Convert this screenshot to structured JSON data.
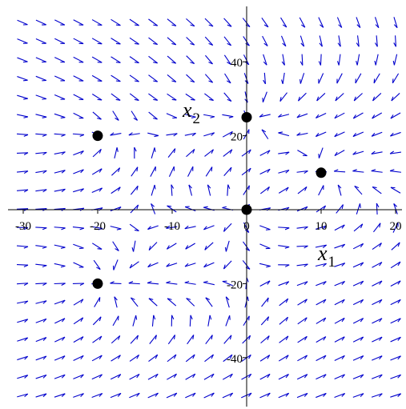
{
  "chart_data": {
    "type": "vector_field",
    "xlim": [
      -32,
      21
    ],
    "ylim": [
      -52,
      54
    ],
    "x_ticks": [
      {
        "value": -30,
        "label": "-30"
      },
      {
        "value": -20,
        "label": "-20"
      },
      {
        "value": -10,
        "label": "-10"
      },
      {
        "value": 0,
        "label": "0"
      },
      {
        "value": 10,
        "label": "10"
      },
      {
        "value": 20,
        "label": "20"
      }
    ],
    "y_ticks": [
      {
        "value": 40,
        "label": "40"
      },
      {
        "value": 20,
        "label": "20"
      },
      {
        "value": -20,
        "label": "-20"
      },
      {
        "value": -40,
        "label": "-40"
      }
    ],
    "xlabel": {
      "base": "x",
      "sub": "1"
    },
    "ylabel": {
      "base": "x",
      "sub": "2"
    },
    "arrow_color": "#0000cc",
    "point_color": "#000000",
    "grid": false,
    "equilibrium_points": [
      {
        "x": 0,
        "y": 0
      },
      {
        "x": 0,
        "y": 25
      },
      {
        "x": 10,
        "y": 10
      },
      {
        "x": -20,
        "y": 20
      },
      {
        "x": -20,
        "y": -20
      }
    ]
  }
}
